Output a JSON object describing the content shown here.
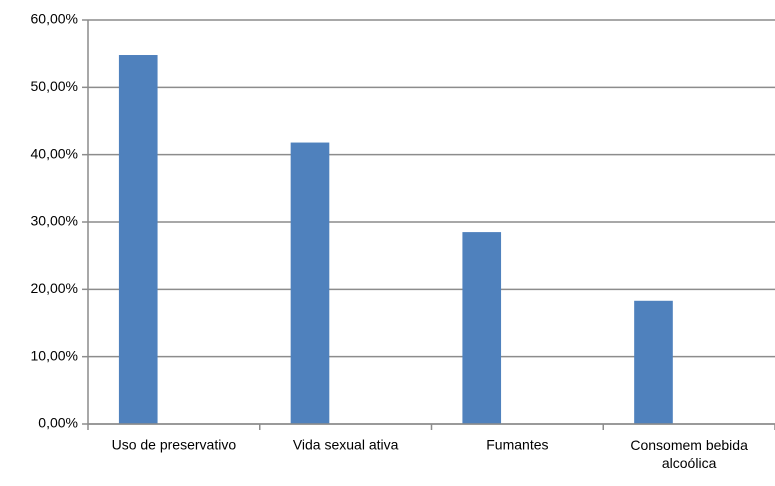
{
  "chart_data": {
    "type": "bar",
    "categories": [
      "Uso de preservativo",
      "Vida sexual ativa",
      "Fumantes",
      "Consomem bebida alcoólica"
    ],
    "values": [
      54.8,
      41.8,
      28.5,
      18.3
    ],
    "color": "#4f81bd",
    "ylim": [
      0,
      60
    ],
    "yticks": [
      {
        "value": 0,
        "label": "0,00%"
      },
      {
        "value": 10,
        "label": "10,00%"
      },
      {
        "value": 20,
        "label": "20,00%"
      },
      {
        "value": 30,
        "label": "30,00%"
      },
      {
        "value": 40,
        "label": "40,00%"
      },
      {
        "value": 50,
        "label": "50,00%"
      },
      {
        "value": 60,
        "label": "60,00%"
      }
    ],
    "grid": true
  }
}
